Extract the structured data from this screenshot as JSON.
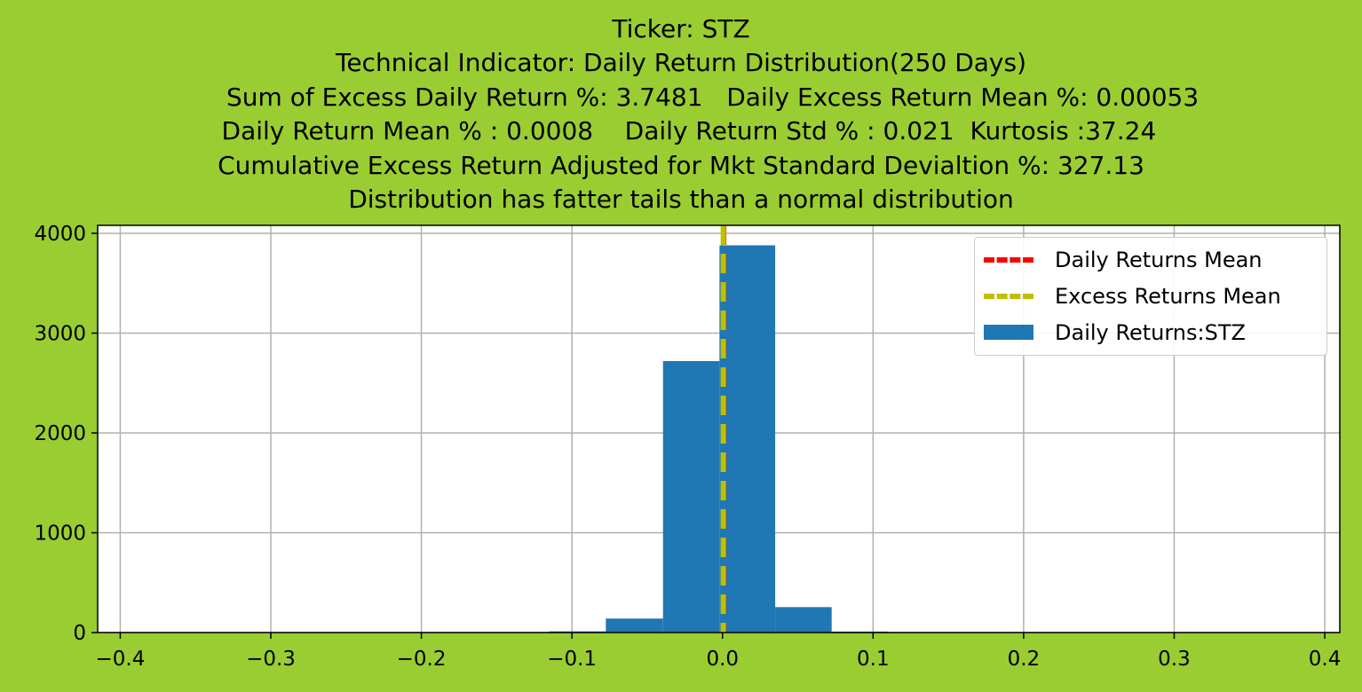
{
  "title_lines": [
    "Ticker: STZ",
    "Technical Indicator: Daily Return Distribution(250 Days)",
    "        Sum of Excess Daily Return %: 3.7481   Daily Excess Return Mean %: 0.00053",
    "  Daily Return Mean % : 0.0008    Daily Return Std % : 0.021  Kurtosis :37.24",
    "Cumulative Excess Return Adjusted for Mkt Standard Devialtion %: 327.13",
    "Distribution has fatter tails than a normal distribution"
  ],
  "colors": {
    "background": "#9acd32",
    "bars": "#1f77b4",
    "daily_mean_line": "#ff0000",
    "excess_mean_line": "#bfbf00",
    "grid": "#b0b0b0"
  },
  "chart_data": {
    "type": "bar",
    "xlim": [
      -0.415,
      0.41
    ],
    "ylim": [
      0,
      4080
    ],
    "x_ticks": [
      -0.4,
      -0.3,
      -0.2,
      -0.1,
      0.0,
      0.1,
      0.2,
      0.3,
      0.4
    ],
    "x_tick_labels": [
      "−0.4",
      "−0.3",
      "−0.2",
      "−0.1",
      "0.0",
      "0.1",
      "0.2",
      "0.3",
      "0.4"
    ],
    "y_ticks": [
      0,
      1000,
      2000,
      3000,
      4000
    ],
    "y_tick_labels": [
      "0",
      "1000",
      "2000",
      "3000",
      "4000"
    ],
    "grid": true,
    "bins": [
      {
        "x0": -0.115,
        "x1": -0.0775,
        "count": 12
      },
      {
        "x0": -0.0775,
        "x1": -0.0395,
        "count": 140
      },
      {
        "x0": -0.0395,
        "x1": -0.002,
        "count": 2720
      },
      {
        "x0": -0.002,
        "x1": 0.035,
        "count": 3880
      },
      {
        "x0": 0.035,
        "x1": 0.0725,
        "count": 255
      },
      {
        "x0": 0.0725,
        "x1": 0.11,
        "count": 10
      }
    ],
    "daily_returns_mean": 0.0008,
    "excess_returns_mean": 0.00053,
    "legend_position": "upper right",
    "legend": [
      {
        "label": "Daily Returns Mean",
        "kind": "dashed-line",
        "color": "#ff0000"
      },
      {
        "label": "Excess Returns Mean",
        "kind": "dashed-line",
        "color": "#bfbf00"
      },
      {
        "label": "Daily Returns:STZ",
        "kind": "patch",
        "color": "#1f77b4"
      }
    ]
  }
}
